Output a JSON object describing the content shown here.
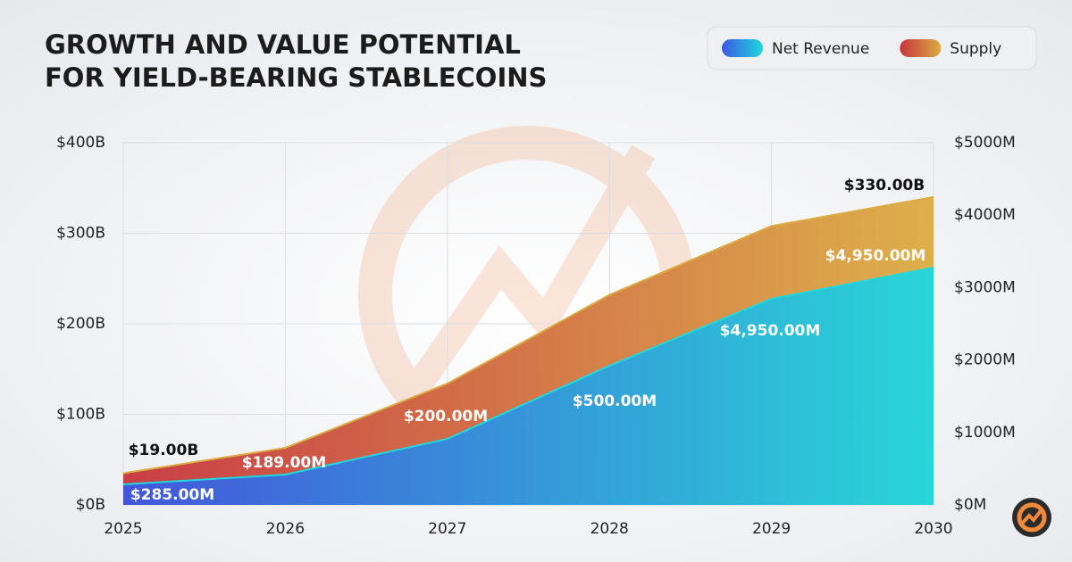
{
  "chart_data": {
    "type": "area",
    "title": [
      "GROWTH AND VALUE POTENTIAL",
      "FOR YIELD-BEARING STABLECOINS"
    ],
    "categories": [
      "2025",
      "2026",
      "2027",
      "2028",
      "2029",
      "2030"
    ],
    "series": [
      {
        "name": "Supply",
        "colors": [
          "#c7343d",
          "#dcac42"
        ],
        "axis": "y",
        "values": [
          35,
          63,
          134,
          232,
          308,
          340
        ]
      },
      {
        "name": "Net Revenue",
        "colors": [
          "#3c57e2",
          "#1fd8df"
        ],
        "axis": "y2",
        "values": [
          283,
          419,
          911,
          1921,
          2845,
          3276
        ]
      }
    ],
    "legend_order": [
      1,
      0
    ],
    "annotations": [
      "$19.00B",
      "$330.00B",
      "$285.00M",
      "$189.00M",
      "$200.00M",
      "$500.00M",
      "$4,950.00M",
      "$4,950.00M"
    ],
    "ylim": [
      0,
      400
    ],
    "yticks": [
      {
        "value": 0,
        "label": "$0B"
      },
      {
        "value": 100,
        "label": "$100B"
      },
      {
        "value": 200,
        "label": "$200B"
      },
      {
        "value": 300,
        "label": "$300B"
      },
      {
        "value": 400,
        "label": "$400B"
      }
    ],
    "y2lim": [
      0,
      5000
    ],
    "y2ticks": [
      {
        "value": 0,
        "label": "$0M"
      },
      {
        "value": 1000,
        "label": "$1000M"
      },
      {
        "value": 2000,
        "label": "$2000M"
      },
      {
        "value": 3000,
        "label": "$3000M"
      },
      {
        "value": 4000,
        "label": "$4000M"
      },
      {
        "value": 5000,
        "label": "$5000M"
      }
    ],
    "grid": true
  }
}
